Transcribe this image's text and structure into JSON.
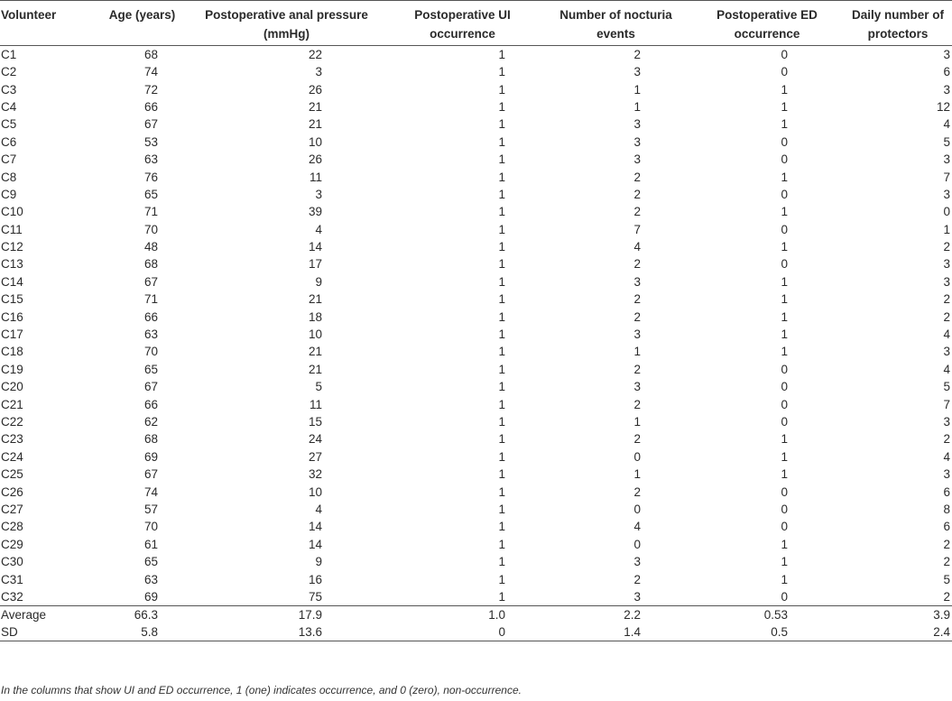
{
  "table": {
    "headers": [
      "Volunteer",
      "Age (years)",
      "Postoperative anal pressure (mmHg)",
      "Postoperative UI occurrence",
      "Number of nocturia events",
      "Postoperative ED occurrence",
      "Daily number of protectors"
    ],
    "rows": [
      [
        "C1",
        "68",
        "22",
        "1",
        "2",
        "0",
        "3"
      ],
      [
        "C2",
        "74",
        "3",
        "1",
        "3",
        "0",
        "6"
      ],
      [
        "C3",
        "72",
        "26",
        "1",
        "1",
        "1",
        "3"
      ],
      [
        "C4",
        "66",
        "21",
        "1",
        "1",
        "1",
        "12"
      ],
      [
        "C5",
        "67",
        "21",
        "1",
        "3",
        "1",
        "4"
      ],
      [
        "C6",
        "53",
        "10",
        "1",
        "3",
        "0",
        "5"
      ],
      [
        "C7",
        "63",
        "26",
        "1",
        "3",
        "0",
        "3"
      ],
      [
        "C8",
        "76",
        "11",
        "1",
        "2",
        "1",
        "7"
      ],
      [
        "C9",
        "65",
        "3",
        "1",
        "2",
        "0",
        "3"
      ],
      [
        "C10",
        "71",
        "39",
        "1",
        "2",
        "1",
        "0"
      ],
      [
        "C11",
        "70",
        "4",
        "1",
        "7",
        "0",
        "1"
      ],
      [
        "C12",
        "48",
        "14",
        "1",
        "4",
        "1",
        "2"
      ],
      [
        "C13",
        "68",
        "17",
        "1",
        "2",
        "0",
        "3"
      ],
      [
        "C14",
        "67",
        "9",
        "1",
        "3",
        "1",
        "3"
      ],
      [
        "C15",
        "71",
        "21",
        "1",
        "2",
        "1",
        "2"
      ],
      [
        "C16",
        "66",
        "18",
        "1",
        "2",
        "1",
        "2"
      ],
      [
        "C17",
        "63",
        "10",
        "1",
        "3",
        "1",
        "4"
      ],
      [
        "C18",
        "70",
        "21",
        "1",
        "1",
        "1",
        "3"
      ],
      [
        "C19",
        "65",
        "21",
        "1",
        "2",
        "0",
        "4"
      ],
      [
        "C20",
        "67",
        "5",
        "1",
        "3",
        "0",
        "5"
      ],
      [
        "C21",
        "66",
        "11",
        "1",
        "2",
        "0",
        "7"
      ],
      [
        "C22",
        "62",
        "15",
        "1",
        "1",
        "0",
        "3"
      ],
      [
        "C23",
        "68",
        "24",
        "1",
        "2",
        "1",
        "2"
      ],
      [
        "C24",
        "69",
        "27",
        "1",
        "0",
        "1",
        "4"
      ],
      [
        "C25",
        "67",
        "32",
        "1",
        "1",
        "1",
        "3"
      ],
      [
        "C26",
        "74",
        "10",
        "1",
        "2",
        "0",
        "6"
      ],
      [
        "C27",
        "57",
        "4",
        "1",
        "0",
        "0",
        "8"
      ],
      [
        "C28",
        "70",
        "14",
        "1",
        "4",
        "0",
        "6"
      ],
      [
        "C29",
        "61",
        "14",
        "1",
        "0",
        "1",
        "2"
      ],
      [
        "C30",
        "65",
        "9",
        "1",
        "3",
        "1",
        "2"
      ],
      [
        "C31",
        "63",
        "16",
        "1",
        "2",
        "1",
        "5"
      ],
      [
        "C32",
        "69",
        "75",
        "1",
        "3",
        "0",
        "2"
      ]
    ],
    "summary": [
      [
        "Average",
        "66.3",
        "17.9",
        "1.0",
        "2.2",
        "0.53",
        "3.9"
      ],
      [
        "SD",
        "5.8",
        "13.6",
        "0",
        "1.4",
        "0.5",
        "2.4"
      ]
    ]
  },
  "footnote": "In the columns that show UI and ED occurrence, 1 (one) indicates occurrence, and 0 (zero), non-occurrence."
}
